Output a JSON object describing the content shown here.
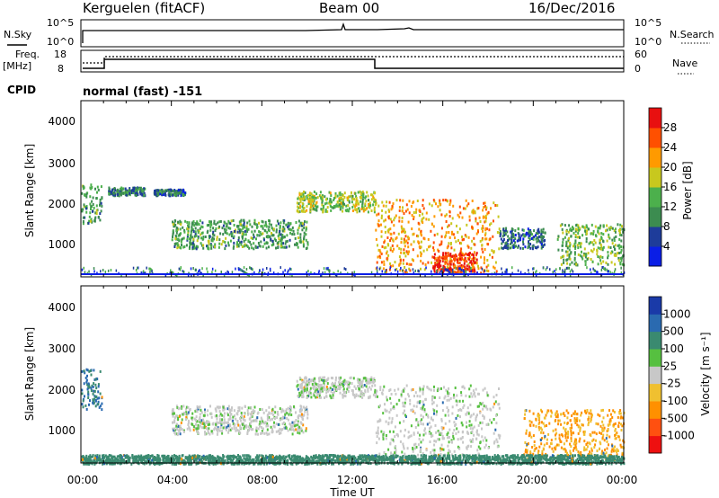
{
  "header": {
    "station": "Kerguelen (fitACF)",
    "beam": "Beam 00",
    "date": "16/Dec/2016",
    "mode": "normal (fast) -151"
  },
  "small_panels": {
    "nsky_label": "N.Sky",
    "nsky_ticks": [
      "10^5",
      "10^0"
    ],
    "nsearch_label": "N.Search",
    "nsearch_ticks": [
      "10^5",
      "10^0"
    ],
    "freq_label_1": "Freq.",
    "freq_label_2": "[MHz]",
    "freq_ticks": [
      "18",
      "8"
    ],
    "nave_label": "Nave",
    "nave_ticks": [
      "60",
      "0"
    ],
    "cpid_label": "CPID"
  },
  "power_panel": {
    "ylabel": "Slant Range [km]",
    "yticks": [
      "4000",
      "3000",
      "2000",
      "1000"
    ],
    "colorbar_label": "Power [dB]",
    "colorbar_ticks": [
      "28",
      "24",
      "20",
      "16",
      "12",
      "8",
      "4"
    ],
    "colors": [
      "#0a1ee6",
      "#1e3c9a",
      "#3c8c50",
      "#4cb04c",
      "#c8c81e",
      "#ff9a00",
      "#ff5000",
      "#e81010"
    ]
  },
  "velocity_panel": {
    "ylabel": "Slant Range [km]",
    "yticks": [
      "4000",
      "3000",
      "2000",
      "1000"
    ],
    "colorbar_label": "Velocity [m s⁻¹]",
    "colorbar_ticks": [
      "1000",
      "500",
      "100",
      "25",
      "-25",
      "-100",
      "-500",
      "-1000"
    ],
    "colors": [
      "#1a3aa8",
      "#2a6ab0",
      "#3a8a70",
      "#56c040",
      "#c8c8c8",
      "#f0c030",
      "#ff9000",
      "#ff5010",
      "#ee1010"
    ]
  },
  "xaxis": {
    "ticks": [
      "00:00",
      "04:00",
      "08:00",
      "12:00",
      "16:00",
      "20:00",
      "00:00"
    ],
    "label": "Time UT"
  },
  "chart_data": [
    {
      "type": "heatmap",
      "name_ref": "Power",
      "x_range_hours": [
        0,
        24
      ],
      "y_range_km": [
        180,
        4500
      ],
      "color_range_db": [
        0,
        32
      ],
      "regions": [
        {
          "t": [
            0.0,
            0.9
          ],
          "r": [
            1500,
            2500
          ],
          "db": 12
        },
        {
          "t": [
            1.2,
            2.8
          ],
          "r": [
            2200,
            2400
          ],
          "db": 10
        },
        {
          "t": [
            3.2,
            4.6
          ],
          "r": [
            2200,
            2350
          ],
          "db": 8
        },
        {
          "t": [
            4.0,
            10.0
          ],
          "r": [
            900,
            1600
          ],
          "db": 12
        },
        {
          "t": [
            9.5,
            13.0
          ],
          "r": [
            1800,
            2300
          ],
          "db": 16
        },
        {
          "t": [
            13.0,
            18.5
          ],
          "r": [
            300,
            2100
          ],
          "db": 22
        },
        {
          "t": [
            15.5,
            17.5
          ],
          "r": [
            300,
            800
          ],
          "db": 28
        },
        {
          "t": [
            18.5,
            20.5
          ],
          "r": [
            900,
            1400
          ],
          "db": 8
        },
        {
          "t": [
            21.0,
            24.0
          ],
          "r": [
            500,
            1500
          ],
          "db": 14
        }
      ]
    },
    {
      "type": "heatmap",
      "name_ref": "Velocity",
      "x_range_hours": [
        0,
        24
      ],
      "y_range_km": [
        180,
        4500
      ],
      "color_range_ms": [
        -1000,
        1000
      ],
      "regions": [
        {
          "t": [
            0.0,
            0.9
          ],
          "r": [
            1500,
            2500
          ],
          "v": 100
        },
        {
          "t": [
            4.0,
            10.0
          ],
          "r": [
            900,
            1600
          ],
          "v": 0
        },
        {
          "t": [
            9.5,
            13.0
          ],
          "r": [
            1800,
            2300
          ],
          "v": 0
        },
        {
          "t": [
            13.0,
            18.5
          ],
          "r": [
            300,
            2100
          ],
          "v": 0
        },
        {
          "t": [
            19.5,
            24.0
          ],
          "r": [
            300,
            1500
          ],
          "v": -100
        },
        {
          "t": [
            0.0,
            24.0
          ],
          "r": [
            180,
            400
          ],
          "v": 50
        }
      ]
    }
  ]
}
